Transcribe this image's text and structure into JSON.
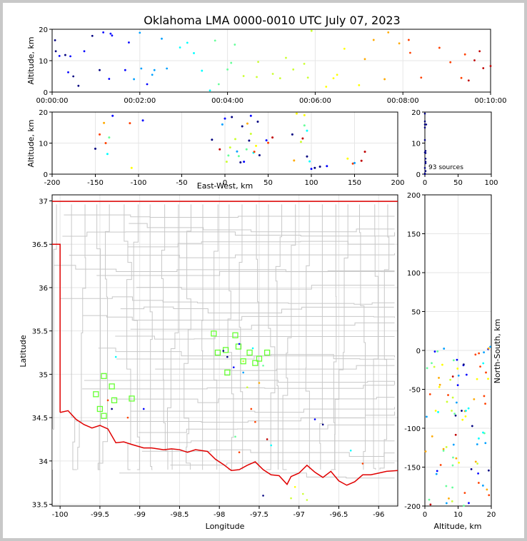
{
  "title": "Oklahoma LMA 0000-0010 UTC July 07, 2023",
  "colors": {
    "state_border": "#e00000",
    "county_lines": "#c8c8c8",
    "grid": "#e6e6e6",
    "station_marker": "#66ff33",
    "colormap": [
      "#000080",
      "#0000ff",
      "#00a0ff",
      "#00ffff",
      "#66ff99",
      "#ccff33",
      "#ffff00",
      "#ffaa00",
      "#ff4000",
      "#c00000"
    ]
  },
  "chart_data": [
    {
      "id": "time_altitude",
      "type": "scatter",
      "ylabel": "Altitude, km",
      "xlim": [
        0,
        600
      ],
      "ylim": [
        0,
        20
      ],
      "xticks": [
        0,
        120,
        240,
        360,
        480,
        600
      ],
      "xticklabels": [
        "00:00:00",
        "00:02:00",
        "00:04:00",
        "00:06:00",
        "00:08:00",
        "00:10:00"
      ],
      "yticks": [
        0,
        10,
        20
      ],
      "grid": true,
      "points_t": [
        4,
        5,
        10,
        18,
        22,
        25,
        29,
        36,
        44,
        55,
        65,
        70,
        78,
        80,
        82,
        100,
        105,
        112,
        120,
        122,
        130,
        137,
        140,
        150,
        157,
        175,
        185,
        194,
        205,
        216,
        223,
        228,
        240,
        245,
        250,
        262,
        280,
        282,
        302,
        312,
        320,
        330,
        345,
        350,
        355,
        375,
        385,
        390,
        400,
        420,
        428,
        440,
        455,
        460,
        475,
        488,
        490,
        505,
        530,
        545,
        560,
        565,
        570,
        578,
        585,
        590,
        600
      ],
      "points_alt": [
        16.5,
        13,
        11.5,
        11.8,
        6.3,
        11.4,
        5,
        2,
        13,
        17.9,
        7,
        19,
        4.2,
        18.6,
        18,
        7,
        15.8,
        4.1,
        18.9,
        7.5,
        2.5,
        5.5,
        7,
        17,
        7.5,
        14.2,
        15.7,
        12.4,
        6.8,
        0.5,
        16.4,
        2.5,
        7.2,
        9.3,
        15.1,
        5.1,
        4.8,
        9.6,
        5.8,
        4.4,
        10.9,
        7.2,
        9,
        4.6,
        19.5,
        1.7,
        4.4,
        5.5,
        13.8,
        2.2,
        10.5,
        16.6,
        4.1,
        19,
        15.5,
        16.6,
        12.5,
        4.6,
        14.1,
        9.5,
        4.5,
        12,
        3.7,
        10.1,
        13,
        7.6,
        8.3
      ],
      "points_c": [
        0.05,
        0.05,
        0.1,
        0.02,
        0.1,
        0.1,
        0.05,
        0.05,
        0.1,
        0.05,
        0.05,
        0.15,
        0.15,
        0.1,
        0.1,
        0.15,
        0.1,
        0.2,
        0.2,
        0.2,
        0.15,
        0.2,
        0.2,
        0.25,
        0.25,
        0.3,
        0.3,
        0.35,
        0.35,
        0.35,
        0.45,
        0.45,
        0.45,
        0.45,
        0.45,
        0.5,
        0.5,
        0.5,
        0.55,
        0.55,
        0.55,
        0.6,
        0.6,
        0.6,
        0.6,
        0.65,
        0.65,
        0.65,
        0.7,
        0.7,
        0.75,
        0.75,
        0.8,
        0.8,
        0.8,
        0.85,
        0.85,
        0.85,
        0.9,
        0.9,
        0.9,
        0.9,
        0.95,
        0.95,
        0.95,
        1.0,
        1.0
      ]
    },
    {
      "id": "ew_altitude",
      "type": "scatter",
      "xlabel": "East-West, km",
      "ylabel": "Altitude, km",
      "xlim": [
        -200,
        200
      ],
      "ylim": [
        0,
        20
      ],
      "xticks": [
        -200,
        -150,
        -100,
        -50,
        0,
        50,
        100,
        150,
        200
      ],
      "yticks": [
        0,
        10,
        20
      ],
      "grid": true
    },
    {
      "id": "altitude_histogram",
      "type": "scatter",
      "xlim": [
        0,
        100
      ],
      "ylim": [
        0,
        20
      ],
      "xticks": [
        0,
        50,
        100
      ],
      "yticks": [
        0,
        10,
        20
      ],
      "annotation": "93 sources",
      "grid": false,
      "points_count": [
        0,
        0,
        0,
        0,
        0,
        0,
        1,
        1,
        1,
        1,
        2,
        1,
        0,
        1,
        0,
        0
      ],
      "points_alt": [
        19.5,
        17,
        16,
        15,
        11,
        7,
        7.5,
        5,
        4,
        3.5,
        16,
        6.8,
        2,
        1,
        0.2,
        0
      ]
    },
    {
      "id": "plan_view",
      "type": "scatter",
      "xlabel": "Longitude",
      "ylabel": "Latitude",
      "xlim": [
        -100.1,
        -95.76
      ],
      "ylim": [
        33.48,
        37.07
      ],
      "xticks": [
        -100.0,
        -99.5,
        -99.0,
        -98.5,
        -98.0,
        -97.5,
        -97.0,
        -96.5,
        -96.0
      ],
      "yticks": [
        33.5,
        34.0,
        34.5,
        35.0,
        35.5,
        36.0,
        36.5,
        37.0
      ],
      "grid": true,
      "stations_lon": [
        -98.07,
        -98.02,
        -97.92,
        -97.8,
        -97.7,
        -97.62,
        -97.55,
        -97.5,
        -97.4,
        -97.9,
        -97.76,
        -99.45,
        -99.35,
        -99.55,
        -99.5,
        -99.45,
        -99.1,
        -99.32
      ],
      "stations_lat": [
        35.47,
        35.25,
        35.28,
        35.45,
        35.15,
        35.25,
        35.13,
        35.18,
        35.25,
        35.02,
        35.32,
        34.98,
        34.86,
        34.77,
        34.6,
        34.52,
        34.72,
        34.7
      ]
    },
    {
      "id": "altitude_ns",
      "type": "scatter",
      "xlabel": "Altitude, km",
      "ylabel": "North-South, km",
      "xlim": [
        0,
        20
      ],
      "ylim": [
        -200,
        200
      ],
      "xticks": [
        0,
        10,
        20
      ],
      "yticks": [
        -200,
        -150,
        -100,
        -50,
        0,
        50,
        100,
        150,
        200
      ],
      "grid": true
    }
  ]
}
